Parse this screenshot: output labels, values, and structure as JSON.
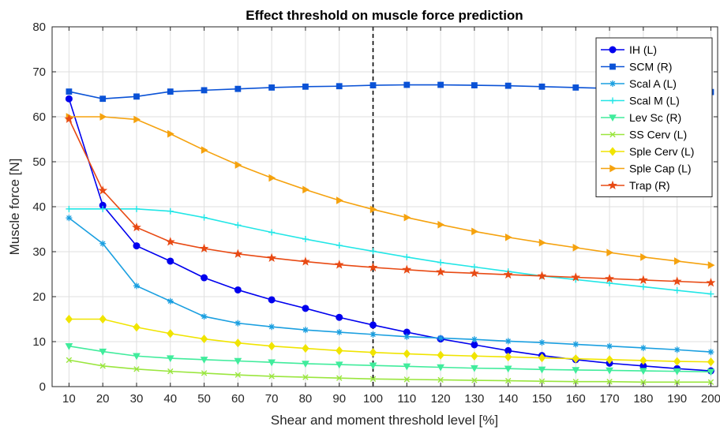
{
  "chart_data": {
    "type": "line",
    "title": "Effect threshold on muscle force prediction",
    "xlabel": "Shear and moment threshold level [%]",
    "ylabel": "Muscle force [N]",
    "xlim": [
      5,
      202
    ],
    "ylim": [
      0,
      80
    ],
    "xticks": [
      10,
      20,
      30,
      40,
      50,
      60,
      70,
      80,
      90,
      100,
      110,
      120,
      130,
      140,
      150,
      160,
      170,
      180,
      190,
      200
    ],
    "yticks": [
      0,
      10,
      20,
      30,
      40,
      50,
      60,
      70,
      80
    ],
    "grid": true,
    "legend_position": "top-right",
    "reference_line": {
      "x": 100,
      "style": "dashed",
      "color": "#000000"
    },
    "x": [
      10,
      20,
      30,
      40,
      50,
      60,
      70,
      80,
      90,
      100,
      110,
      120,
      130,
      140,
      150,
      160,
      170,
      180,
      190,
      200
    ],
    "series": [
      {
        "name": "IH (L)",
        "color": "#0000ee",
        "marker": "circle",
        "values": [
          64,
          40.3,
          31.3,
          27.9,
          24.2,
          21.5,
          19.3,
          17.4,
          15.4,
          13.7,
          12.1,
          10.6,
          9.3,
          8.0,
          6.9,
          6.0,
          5.2,
          4.6,
          4.0,
          3.5
        ]
      },
      {
        "name": "SCM (R)",
        "color": "#0a52d6",
        "marker": "square",
        "values": [
          65.6,
          64.0,
          64.5,
          65.6,
          65.9,
          66.2,
          66.5,
          66.7,
          66.8,
          67.0,
          67.1,
          67.1,
          67.0,
          66.9,
          66.7,
          66.5,
          66.3,
          66.1,
          65.8,
          65.5
        ]
      },
      {
        "name": "Scal A (L)",
        "color": "#1a9fe0",
        "marker": "asterisk",
        "values": [
          37.5,
          31.8,
          22.4,
          19.0,
          15.6,
          14.1,
          13.3,
          12.6,
          12.1,
          11.6,
          11.1,
          10.8,
          10.5,
          10.1,
          9.8,
          9.4,
          9.0,
          8.6,
          8.2,
          7.7
        ]
      },
      {
        "name": "Scal M (L)",
        "color": "#22e6e6",
        "marker": "plus",
        "values": [
          39.5,
          39.5,
          39.5,
          39.0,
          37.6,
          35.9,
          34.3,
          32.8,
          31.4,
          30.1,
          28.8,
          27.6,
          26.6,
          25.6,
          24.6,
          23.8,
          23.0,
          22.2,
          21.4,
          20.6
        ]
      },
      {
        "name": "Lev Sc (R)",
        "color": "#40ec9c",
        "marker": "triangle-down",
        "values": [
          9.0,
          7.8,
          6.8,
          6.3,
          6.0,
          5.7,
          5.4,
          5.1,
          4.9,
          4.7,
          4.5,
          4.3,
          4.1,
          4.0,
          3.8,
          3.7,
          3.6,
          3.5,
          3.4,
          3.3
        ]
      },
      {
        "name": "SS Cerv (L)",
        "color": "#9ae63e",
        "marker": "x",
        "values": [
          5.9,
          4.6,
          3.9,
          3.4,
          3.0,
          2.6,
          2.3,
          2.1,
          1.9,
          1.7,
          1.6,
          1.5,
          1.4,
          1.3,
          1.2,
          1.1,
          1.1,
          1.0,
          1.0,
          1.0
        ]
      },
      {
        "name": "Sple Cerv (L)",
        "color": "#f0e400",
        "marker": "diamond",
        "values": [
          15.0,
          15.0,
          13.2,
          11.8,
          10.6,
          9.7,
          9.0,
          8.5,
          8.0,
          7.6,
          7.3,
          7.0,
          6.8,
          6.6,
          6.4,
          6.2,
          6.0,
          5.8,
          5.6,
          5.5
        ]
      },
      {
        "name": "Sple Cap (L)",
        "color": "#f5a20e",
        "marker": "triangle-right",
        "values": [
          60.0,
          60.0,
          59.4,
          56.2,
          52.6,
          49.3,
          46.4,
          43.8,
          41.4,
          39.4,
          37.6,
          36.0,
          34.5,
          33.2,
          32.0,
          30.9,
          29.8,
          28.8,
          27.9,
          27.0
        ]
      },
      {
        "name": "Trap (R)",
        "color": "#e84a14",
        "marker": "star",
        "values": [
          59.5,
          43.6,
          35.4,
          32.2,
          30.7,
          29.5,
          28.6,
          27.8,
          27.1,
          26.5,
          26.0,
          25.5,
          25.2,
          24.9,
          24.6,
          24.3,
          24.0,
          23.7,
          23.4,
          23.1
        ]
      }
    ]
  }
}
